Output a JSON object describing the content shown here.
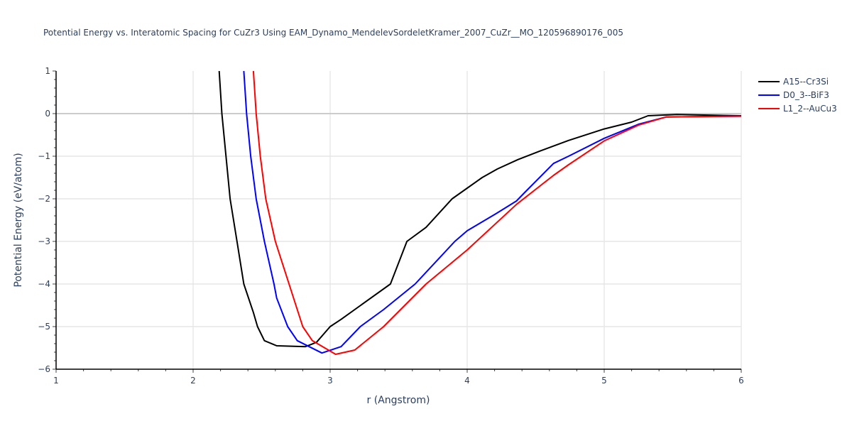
{
  "chart_data": {
    "type": "line",
    "title": "Potential Energy vs. Interatomic Spacing for CuZr3 Using EAM_Dynamo_MendelevSordeletKramer_2007_CuZr__MO_120596890176_005",
    "xlabel": "r (Angstrom)",
    "ylabel": "Potential Energy (eV/atom)",
    "xlim": [
      1,
      6
    ],
    "ylim": [
      -6,
      1
    ],
    "x_ticks": [
      1,
      2,
      3,
      4,
      5,
      6
    ],
    "y_ticks": [
      1,
      0,
      -1,
      -2,
      -3,
      -4,
      -5,
      -6
    ],
    "grid": true,
    "legend_position": "right-top",
    "series": [
      {
        "name": "A15--Cr3Si",
        "color": "#000000",
        "x": [
          2.19,
          2.21,
          2.24,
          2.27,
          2.32,
          2.37,
          2.44,
          2.47,
          2.52,
          2.61,
          2.82,
          2.9,
          3.0,
          3.08,
          3.44,
          3.56,
          3.7,
          3.89,
          4.0,
          4.11,
          4.22,
          4.37,
          4.53,
          4.74,
          5.0,
          5.2,
          5.32,
          5.53,
          6.0
        ],
        "y": [
          1.0,
          0.0,
          -1.0,
          -2.0,
          -3.0,
          -4.0,
          -4.67,
          -5.0,
          -5.33,
          -5.45,
          -5.47,
          -5.37,
          -5.0,
          -4.83,
          -4.0,
          -3.0,
          -2.67,
          -2.0,
          -1.75,
          -1.5,
          -1.3,
          -1.08,
          -0.88,
          -0.63,
          -0.36,
          -0.2,
          -0.05,
          -0.02,
          -0.05
        ]
      },
      {
        "name": "D0_3--BiF3",
        "color": "#0000ff",
        "x": [
          2.37,
          2.39,
          2.42,
          2.46,
          2.52,
          2.59,
          2.61,
          2.69,
          2.76,
          2.94,
          3.08,
          3.22,
          3.39,
          3.62,
          3.91,
          4.0,
          4.21,
          4.36,
          4.42,
          4.63,
          4.74,
          5.0,
          5.25,
          5.45,
          6.0
        ],
        "y": [
          1.0,
          0.0,
          -1.0,
          -2.0,
          -3.0,
          -4.0,
          -4.33,
          -5.0,
          -5.33,
          -5.62,
          -5.47,
          -5.0,
          -4.6,
          -4.0,
          -3.0,
          -2.75,
          -2.35,
          -2.05,
          -1.85,
          -1.17,
          -1.0,
          -0.58,
          -0.25,
          -0.08,
          -0.06
        ]
      },
      {
        "name": "L1_2--AuCu3",
        "color": "#ff0000",
        "x": [
          2.44,
          2.46,
          2.49,
          2.53,
          2.6,
          2.7,
          2.8,
          2.87,
          3.04,
          3.18,
          3.39,
          3.7,
          4.0,
          4.36,
          4.63,
          4.74,
          5.0,
          5.25,
          5.45,
          6.0
        ],
        "y": [
          1.0,
          0.0,
          -1.0,
          -2.0,
          -3.0,
          -4.0,
          -5.0,
          -5.33,
          -5.65,
          -5.55,
          -5.0,
          -4.0,
          -3.2,
          -2.13,
          -1.45,
          -1.2,
          -0.64,
          -0.27,
          -0.08,
          -0.06
        ]
      }
    ]
  }
}
